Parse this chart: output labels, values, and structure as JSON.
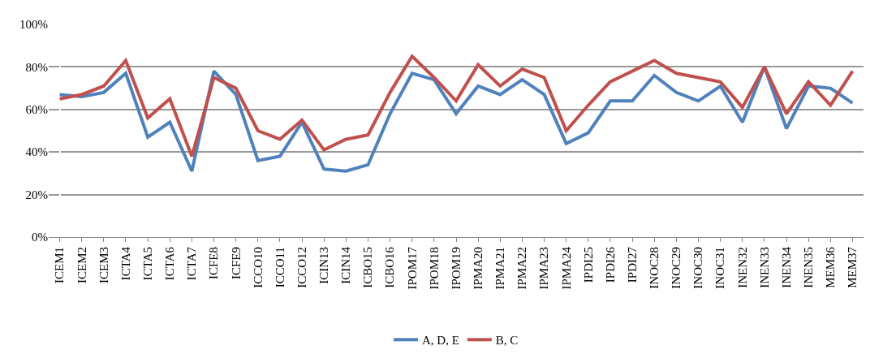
{
  "chart_data": {
    "type": "line",
    "categories": [
      "ICEM1",
      "ICEM2",
      "ICEM3",
      "ICTA4",
      "ICTA5",
      "ICTA6",
      "ICTA7",
      "ICFE8",
      "ICFE9",
      "ICCO10",
      "ICCO11",
      "ICCO12",
      "ICIN13",
      "ICIN14",
      "ICBO15",
      "ICBO16",
      "IPOM17",
      "IPOM18",
      "IPOM19",
      "IPMA20",
      "IPMA21",
      "IPMA22",
      "IPMA23",
      "IPMA24",
      "IPDI25",
      "IPDI26",
      "IPDI27",
      "INOC28",
      "INOC29",
      "INOC30",
      "INOC31",
      "INEN32",
      "INEN33",
      "INEN34",
      "INEN35",
      "MEM36",
      "MEM37"
    ],
    "series": [
      {
        "name": "A, D, E",
        "color": "#4f81bd",
        "values": [
          67,
          66,
          68,
          77,
          47,
          54,
          31,
          78,
          67,
          36,
          38,
          54,
          32,
          31,
          34,
          58,
          77,
          74,
          58,
          71,
          67,
          74,
          67,
          44,
          49,
          64,
          64,
          76,
          68,
          64,
          71,
          54,
          80,
          51,
          71,
          70,
          63
        ]
      },
      {
        "name": "B, C",
        "color": "#c0504d",
        "values": [
          65,
          67,
          71,
          83,
          56,
          65,
          38,
          75,
          70,
          50,
          46,
          55,
          41,
          46,
          48,
          68,
          85,
          75,
          64,
          81,
          71,
          79,
          75,
          50,
          62,
          73,
          78,
          83,
          77,
          75,
          73,
          61,
          80,
          58,
          73,
          62,
          78
        ]
      }
    ],
    "ylim": [
      0,
      100
    ],
    "yticks": [
      {
        "value": 0,
        "label": "0%"
      },
      {
        "value": 20,
        "label": "20%"
      },
      {
        "value": 40,
        "label": "40%"
      },
      {
        "value": 60,
        "label": "60%"
      },
      {
        "value": 80,
        "label": "80%"
      },
      {
        "value": 100,
        "label": "100%"
      }
    ],
    "grid": "y",
    "legend": "bottom",
    "marker": "none",
    "line_style": "solid"
  }
}
